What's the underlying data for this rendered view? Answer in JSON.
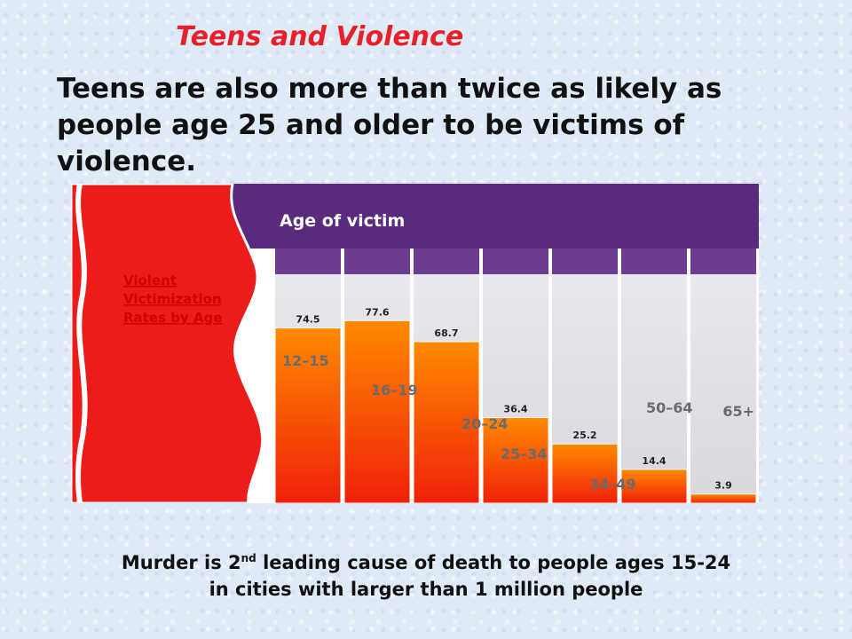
{
  "slide": {
    "title": "Teens and Violence",
    "subtitle": "Teens are also more than twice as likely as people age 25 and older to be victims of violence.",
    "footer": {
      "part1": "Murder is 2",
      "sup": "nd",
      "part2": " leading cause of death to people ages 15-24",
      "line2": "in cities with larger than 1 million people"
    }
  },
  "chart_data": {
    "type": "bar",
    "header": "Age of victim",
    "axis_label": [
      "Violent",
      "Victimization",
      "Rates by Age"
    ],
    "categories": [
      "12–15",
      "16–19",
      "20–24",
      "25–34",
      "34–49",
      "50–64",
      "65+"
    ],
    "values": [
      74.5,
      77.6,
      68.7,
      36.4,
      25.2,
      14.4,
      3.9
    ],
    "value_labels": [
      "74.5",
      "77.6",
      "68.7",
      "36.4",
      "25.2",
      "14.4",
      "3.9"
    ],
    "ylim": [
      0,
      100
    ],
    "grid": true,
    "colors": {
      "header_band": "#5a2a7c",
      "bar_top": "#ff8a00",
      "bar_bottom": "#f0200a",
      "wave": "#ee1b1b",
      "category_text": "#6b6b6b",
      "axis_label_text": "#cc0000",
      "title": "#e8202a"
    }
  }
}
